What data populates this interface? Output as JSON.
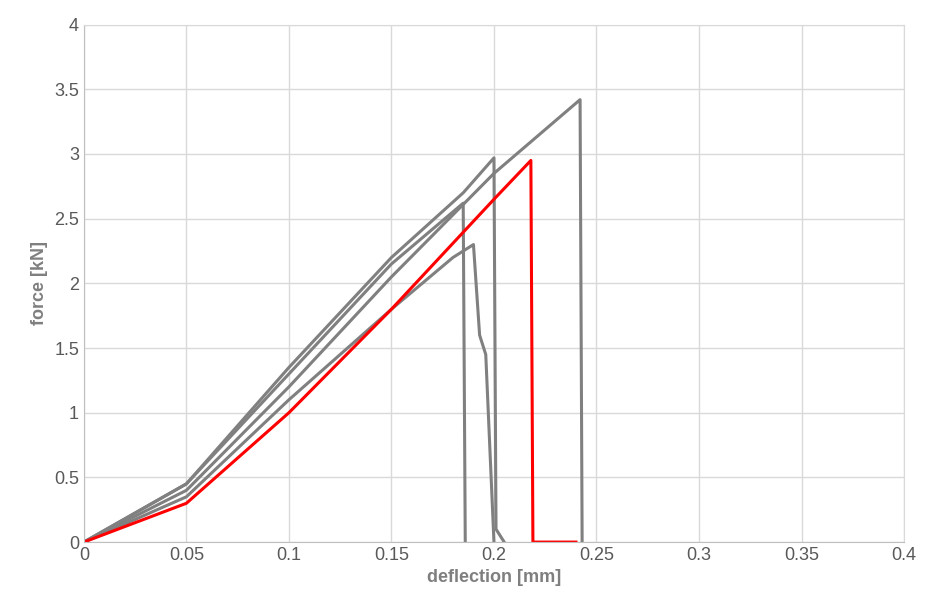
{
  "chart_data": {
    "type": "line",
    "x_label": "deflection [mm]",
    "y_label": "force [kN]",
    "xlim": [
      0,
      0.4
    ],
    "xticks": [
      0,
      0.05,
      0.1,
      0.15,
      0.2,
      0.25,
      0.3,
      0.35,
      0.4
    ],
    "ylim": [
      0,
      4
    ],
    "yticks": [
      0,
      0.5,
      1,
      1.5,
      2,
      2.5,
      3,
      3.5,
      4
    ],
    "grid": true,
    "series": [
      {
        "color": "#808080",
        "x": [
          0,
          0.05,
          0.1,
          0.15,
          0.2,
          0.242,
          0.243
        ],
        "values": [
          0,
          0.4,
          1.2,
          2.05,
          2.85,
          3.42,
          0
        ]
      },
      {
        "color": "#808080",
        "x": [
          0,
          0.05,
          0.1,
          0.15,
          0.185,
          0.2,
          0.201,
          0.205
        ],
        "values": [
          0,
          0.45,
          1.35,
          2.2,
          2.7,
          2.97,
          0.1,
          0
        ]
      },
      {
        "color": "#808080",
        "x": [
          0,
          0.05,
          0.1,
          0.15,
          0.185,
          0.186
        ],
        "values": [
          0,
          0.45,
          1.3,
          2.15,
          2.62,
          0
        ]
      },
      {
        "color": "#808080",
        "x": [
          0,
          0.05,
          0.1,
          0.15,
          0.18,
          0.19,
          0.193,
          0.196,
          0.2
        ],
        "values": [
          0,
          0.35,
          1.1,
          1.8,
          2.2,
          2.3,
          1.6,
          1.45,
          0
        ]
      },
      {
        "color": "#ff0000",
        "x": [
          0,
          0.05,
          0.1,
          0.15,
          0.2,
          0.218,
          0.219,
          0.24
        ],
        "values": [
          0,
          0.3,
          1.0,
          1.8,
          2.65,
          2.95,
          0,
          0
        ]
      }
    ]
  }
}
